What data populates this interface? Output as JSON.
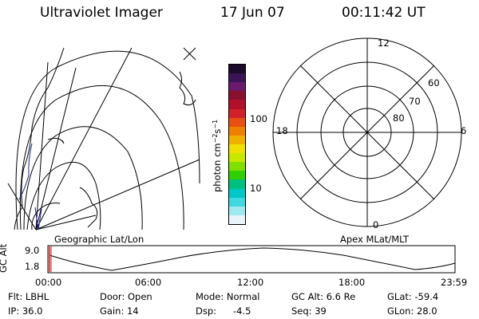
{
  "header": {
    "instrument": "Ultraviolet Imager",
    "date": "17 Jun 07",
    "time": "00:11:42 UT"
  },
  "colorbar": {
    "label": "photon cm-2s-1",
    "ticks": [
      "100",
      "10"
    ],
    "colors": [
      "#1a0a2e",
      "#3a1455",
      "#6a1a6a",
      "#8a1030",
      "#b0102a",
      "#d0202a",
      "#e85010",
      "#f08000",
      "#f0b000",
      "#f0e000",
      "#c8e800",
      "#80e000",
      "#30d000",
      "#00c080",
      "#00c8c8",
      "#40d8e0",
      "#a0e8f0",
      "#e8f4f8"
    ]
  },
  "left_map": {
    "caption": "Geographic Lat/Lon"
  },
  "right_map": {
    "caption": "Apex MLat/MLT",
    "mlt_labels": {
      "top": "12",
      "left": "18",
      "right": "6",
      "bottom": "0"
    },
    "lat_labels": [
      "60",
      "70",
      "80"
    ]
  },
  "altitude_plot": {
    "ylabel": "GC Alt",
    "yticks": [
      "9.0",
      "1.8"
    ],
    "xticks": [
      "00:00",
      "06:00",
      "12:00",
      "18:00",
      "23:59"
    ]
  },
  "status": {
    "flt": "Flt: LBHL",
    "ip": "IP: 36.0",
    "door": "Door: Open",
    "gain": "Gain: 14",
    "mode": "Mode: Normal",
    "dsp": "Dsp:",
    "dsp_value": "-4.5",
    "gc_alt": "GC Alt: 6.6 Re",
    "seq": "Seq: 39",
    "glat": "GLat: -59.4",
    "glon": "GLon: 28.0"
  }
}
